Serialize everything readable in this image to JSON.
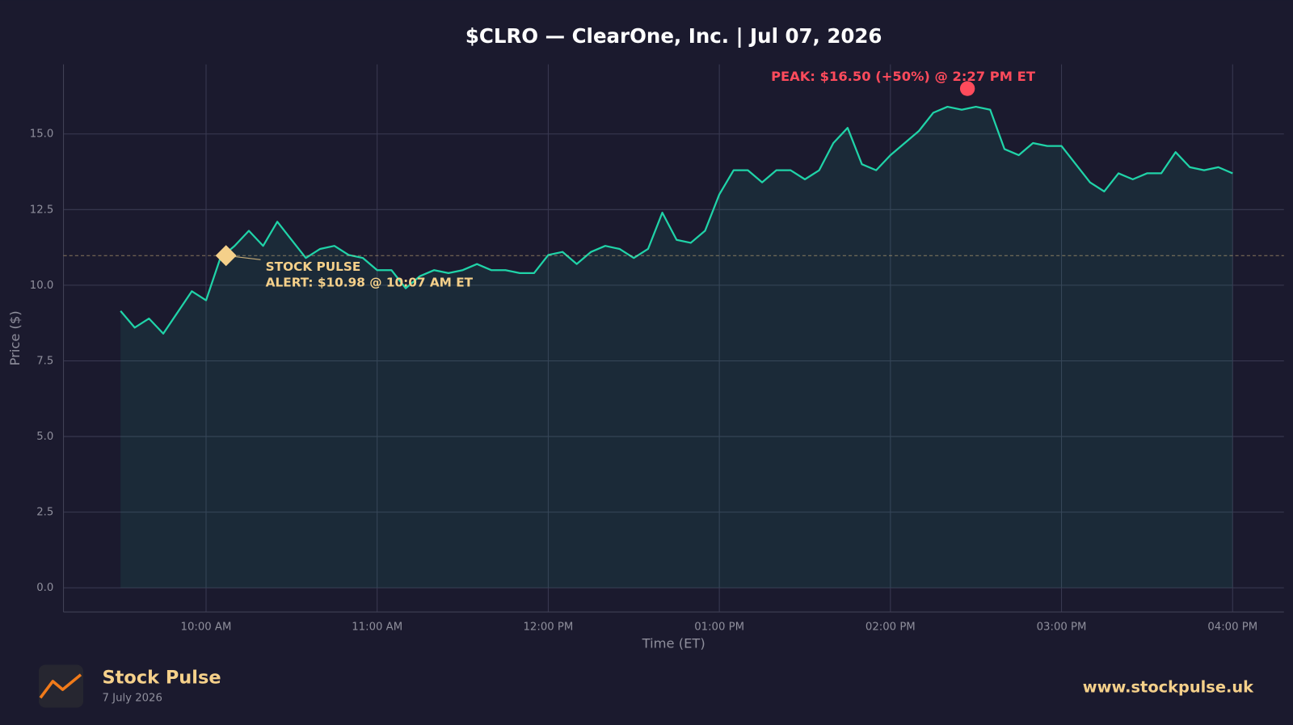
{
  "chart_data": {
    "type": "line",
    "title": "$CLRO — ClearOne, Inc.  |  Jul 07, 2026",
    "x_label": "Time (ET)",
    "y_label": "Price ($)",
    "color": "#20d3a8",
    "grid": true,
    "xlim": [
      550,
      978
    ],
    "ylim": [
      -0.8,
      17.3
    ],
    "xticks": [
      {
        "value": 600,
        "label": "10:00 AM"
      },
      {
        "value": 660,
        "label": "11:00 AM"
      },
      {
        "value": 720,
        "label": "12:00 PM"
      },
      {
        "value": 780,
        "label": "01:00 PM"
      },
      {
        "value": 840,
        "label": "02:00 PM"
      },
      {
        "value": 900,
        "label": "03:00 PM"
      },
      {
        "value": 960,
        "label": "04:00 PM"
      }
    ],
    "yticks": [
      {
        "value": 0,
        "label": "0.0"
      },
      2.5,
      {
        "value": 5,
        "label": "5.0"
      },
      7.5,
      {
        "value": 10,
        "label": "10.0"
      },
      12.5,
      {
        "value": 15,
        "label": "15.0"
      }
    ],
    "x": [
      570,
      575,
      580,
      585,
      590,
      595,
      600,
      605,
      610,
      615,
      620,
      625,
      630,
      635,
      640,
      645,
      650,
      655,
      660,
      665,
      670,
      675,
      680,
      685,
      690,
      695,
      700,
      705,
      710,
      715,
      720,
      725,
      730,
      735,
      740,
      745,
      750,
      755,
      760,
      765,
      770,
      775,
      780,
      785,
      790,
      795,
      800,
      805,
      810,
      815,
      820,
      825,
      830,
      835,
      840,
      845,
      850,
      855,
      860,
      865,
      870,
      875,
      880,
      885,
      890,
      895,
      900,
      905,
      910,
      915,
      920,
      925,
      930,
      935,
      940,
      945,
      950,
      955,
      960
    ],
    "values": [
      9.15,
      8.6,
      8.9,
      8.4,
      9.1,
      9.8,
      9.5,
      10.9,
      11.3,
      11.8,
      11.3,
      12.1,
      11.5,
      10.9,
      11.2,
      11.3,
      11.0,
      10.9,
      10.5,
      10.5,
      9.9,
      10.3,
      10.5,
      10.4,
      10.5,
      10.7,
      10.5,
      10.5,
      10.4,
      10.4,
      11.0,
      11.1,
      10.7,
      11.1,
      11.3,
      11.2,
      10.9,
      11.2,
      12.4,
      11.5,
      11.4,
      11.8,
      13.0,
      13.8,
      13.8,
      13.4,
      13.8,
      13.8,
      13.5,
      13.8,
      14.7,
      15.2,
      14.0,
      13.8,
      14.3,
      14.7,
      15.1,
      15.7,
      15.9,
      15.8,
      15.9,
      15.8,
      14.5,
      14.3,
      14.7,
      14.6,
      14.6,
      14.0,
      13.4,
      13.1,
      13.7,
      13.5,
      13.7,
      13.7,
      14.4,
      13.9,
      13.8,
      13.9,
      13.7
    ],
    "peak": {
      "x": 867,
      "y": 16.5,
      "color": "#ff4b5c",
      "label": "PEAK: $16.50 (+50%) @ 2:27 PM ET"
    },
    "alert": {
      "x": 607,
      "y": 10.98,
      "color": "#f5d08a",
      "label": [
        "STOCK PULSE",
        "ALERT: $10.98 @ 10:07 AM ET"
      ]
    }
  },
  "footer": {
    "brand": "Stock Pulse",
    "date": "7 July 2026",
    "url": "www.stockpulse.uk"
  }
}
